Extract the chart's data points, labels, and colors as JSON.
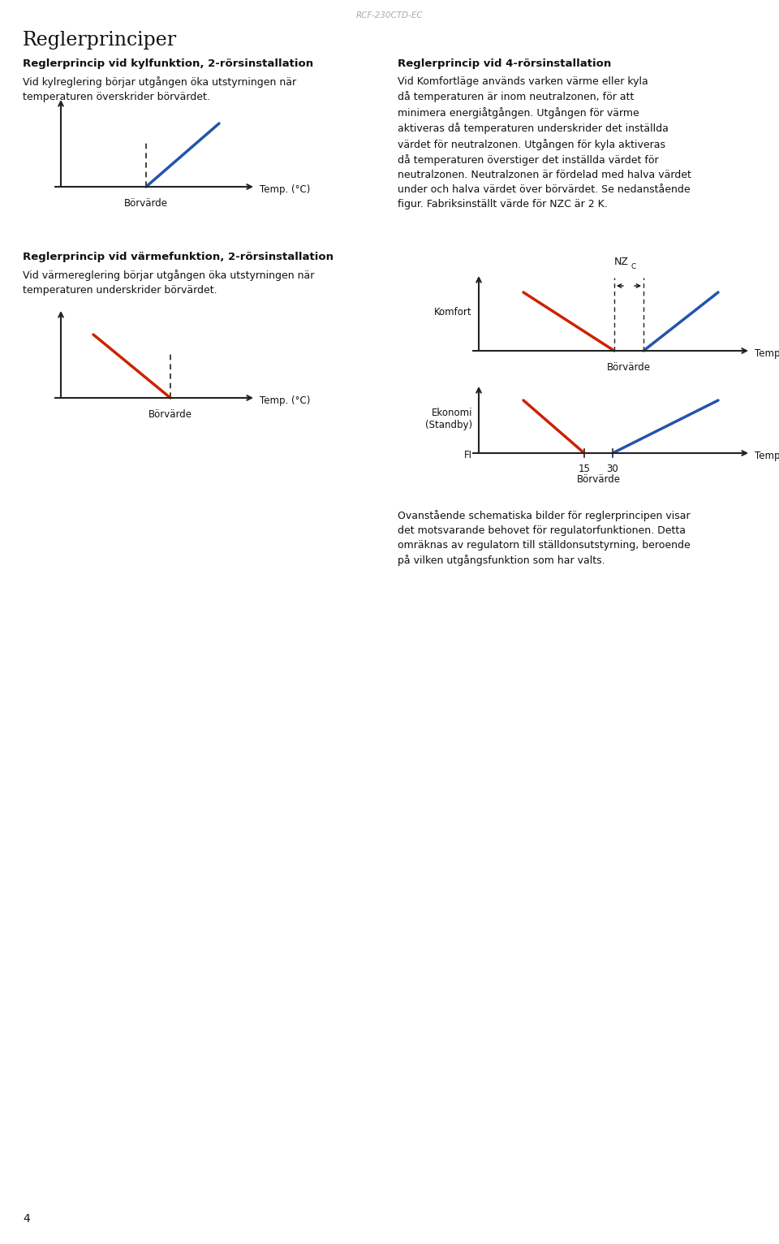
{
  "page_title": "RCF-230CTD-EC",
  "main_title": "Reglerprinciper",
  "section1_title": "Reglerprincip vid kylfunktion, 2-rörsinstallation",
  "section1_text": "Vid kylreglering börjar utgången öka utstyrningen när\ntemperaturen överskrider börvärdet.",
  "section2_title": "Reglerprincip vid värmefunktion, 2-rörsinstallation",
  "section2_text": "Vid värmereglering börjar utgången öka utstyrningen när\ntemperaturen underskrider börvärdet.",
  "section3_title": "Reglerprincip vid 4-rörsinstallation",
  "section3_text": "Vid Komfortläge används varken värme eller kyla\ndå temperaturen är inom neutralzonen, för att\nminimera energiåtgången. Utgången för värme\naktiveras då temperaturen underskrider det inställda\nvärdet för neutralzonen. Utgången för kyla aktiveras\ndå temperaturen överstiger det inställda värdet för\nneutralzonen. Neutralzonen är fördelad med halva värdet\nunder och halva värdet över börvärdet. Se nedanstående\nfigur. Fabriksinställt värde för NZC är 2 K.",
  "section4_text": "Ovanstående schematiska bilder för reglerprincipen visar\ndet motsvarande behovet för regulatorfunktionen. Detta\nomräknas av regulatorn till ställdonsutstyrning, beroende\npå vilken utgångsfunktion som har valts.",
  "blue_color": "#2255aa",
  "red_color": "#cc2200",
  "dark_color": "#111111",
  "axis_color": "#222222",
  "light_gray": "#aaaaaa",
  "bg_color": "#ffffff",
  "page_number": "4"
}
